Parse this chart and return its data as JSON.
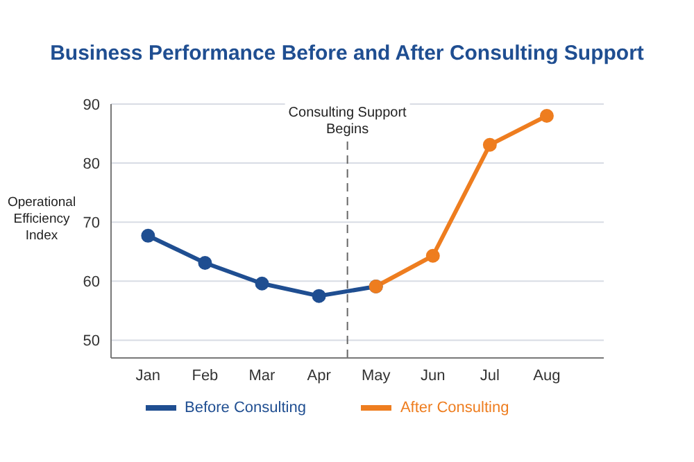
{
  "chart_data": {
    "type": "line",
    "title": "Business Performance Before and After Consulting Support",
    "ylabel": "Operational Efficiency Index",
    "categories": [
      "Jan",
      "Feb",
      "Mar",
      "Apr",
      "May",
      "Jun",
      "Jul",
      "Aug"
    ],
    "ylim": [
      47,
      90
    ],
    "yticks": [
      50,
      60,
      70,
      80,
      90
    ],
    "series": [
      {
        "name": "Before Consulting",
        "color": "#1f4e91",
        "values": [
          67.7,
          63.1,
          59.6,
          57.5,
          59.1,
          null,
          null,
          null
        ]
      },
      {
        "name": "After Consulting",
        "color": "#ee7d1f",
        "values": [
          null,
          null,
          null,
          null,
          59.1,
          64.3,
          83.1,
          88.0
        ]
      }
    ],
    "ref_lines": [
      {
        "axis": "x",
        "value": "May",
        "label": "Consulting Support\nBegins",
        "color": "#666666",
        "line_style": "dashed"
      }
    ],
    "grid": "y",
    "legend": "bottom",
    "marker": "circle",
    "line_style": "solid"
  }
}
